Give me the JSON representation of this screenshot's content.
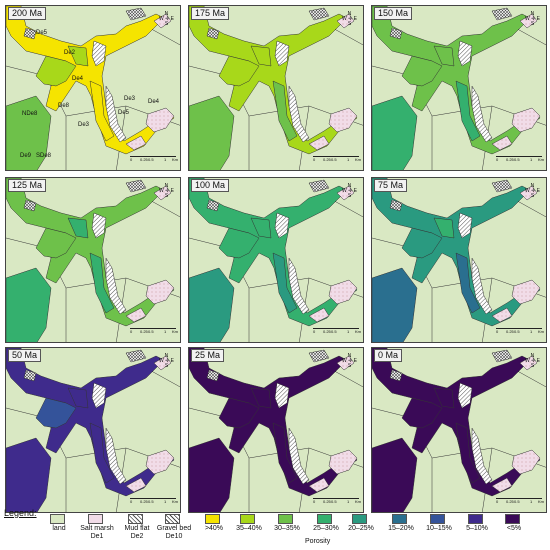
{
  "panels": [
    {
      "label": "200 Ma",
      "color_pattern": "200"
    },
    {
      "label": "175 Ma",
      "color_pattern": "175"
    },
    {
      "label": "150 Ma",
      "color_pattern": "150"
    },
    {
      "label": "125 Ma",
      "color_pattern": "125"
    },
    {
      "label": "100 Ma",
      "color_pattern": "100"
    },
    {
      "label": "75 Ma",
      "color_pattern": "75"
    },
    {
      "label": "50 Ma",
      "color_pattern": "50"
    },
    {
      "label": "25 Ma",
      "color_pattern": "25"
    },
    {
      "label": "0 Ma",
      "color_pattern": "0"
    }
  ],
  "region_labels": [
    "De5",
    "De2",
    "De4",
    "De8",
    "NDe8",
    "De3",
    "De5",
    "De3",
    "De4",
    "De9",
    "SDe8"
  ],
  "scale": {
    "ticks": [
      "0",
      "0.25",
      "0.5",
      "1"
    ],
    "unit": "Km"
  },
  "north": {
    "n": "N",
    "s": "S",
    "e": "E",
    "w": "W"
  },
  "legend": {
    "title": "Legend:",
    "items": [
      {
        "label": "land",
        "color": "#d9e8c3",
        "sub": ""
      },
      {
        "label": "Salt marsh",
        "sub": "De1",
        "color": "#f1dce8"
      },
      {
        "label": "Mud flat",
        "sub": "De2",
        "color": "#c8c8c8"
      },
      {
        "label": "Gravel bed",
        "sub": "De10",
        "color": "#ffffff"
      },
      {
        "label": ">40%",
        "color": "#f5e400",
        "sub": ""
      },
      {
        "label": "35–40%",
        "color": "#a8d81a",
        "sub": ""
      },
      {
        "label": "30–35%",
        "color": "#6ec14a",
        "sub": ""
      },
      {
        "label": "25–30%",
        "color": "#34b06e",
        "sub": ""
      },
      {
        "label": "20–25%",
        "color": "#2a9a80",
        "sub": ""
      },
      {
        "label": "15–20%",
        "color": "#2a6f8f",
        "sub": ""
      },
      {
        "label": "10–15%",
        "color": "#34539a",
        "sub": ""
      },
      {
        "label": "5–10%",
        "color": "#3f2b8c",
        "sub": ""
      },
      {
        "label": "<5%",
        "color": "#3a0a57",
        "sub": ""
      }
    ],
    "porosity_label": "Porosity"
  },
  "palettes": {
    "200": {
      "a": "#f5e400",
      "b": "#a8d81a",
      "c": "#a8d81a",
      "d": "#f5e400",
      "e": "#6ec14a"
    },
    "175": {
      "a": "#a8d81a",
      "b": "#a8d81a",
      "c": "#a8d81a",
      "d": "#6ec14a",
      "e": "#6ec14a"
    },
    "150": {
      "a": "#6ec14a",
      "b": "#6ec14a",
      "c": "#6ec14a",
      "d": "#34b06e",
      "e": "#34b06e"
    },
    "125": {
      "a": "#6ec14a",
      "b": "#6ec14a",
      "c": "#34b06e",
      "d": "#34b06e",
      "e": "#34b06e"
    },
    "100": {
      "a": "#34b06e",
      "b": "#34b06e",
      "c": "#34b06e",
      "d": "#2a9a80",
      "e": "#2a9a80"
    },
    "75": {
      "a": "#2a9a80",
      "b": "#2a9a80",
      "c": "#34b06e",
      "d": "#2a6f8f",
      "e": "#2a6f8f"
    },
    "50": {
      "a": "#3f2b8c",
      "b": "#34539a",
      "c": "#3f2b8c",
      "d": "#3f2b8c",
      "e": "#3f2b8c"
    },
    "25": {
      "a": "#3a0a57",
      "b": "#3a0a57",
      "c": "#3a0a57",
      "d": "#3a0a57",
      "e": "#3a0a57"
    },
    "0": {
      "a": "#3a0a57",
      "b": "#3a0a57",
      "c": "#3a0a57",
      "d": "#3a0a57",
      "e": "#3a0a57"
    }
  }
}
